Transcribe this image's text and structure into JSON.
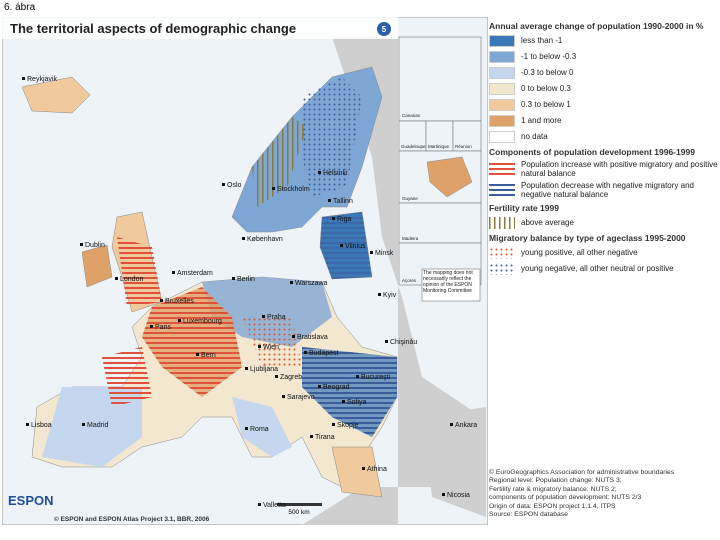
{
  "caption": "6. ábra",
  "title": "The territorial aspects of demographic change",
  "map_number": "5",
  "cities": [
    "Reykjavik",
    "Oslo",
    "Stockholm",
    "Helsinki",
    "Tallinn",
    "Riga",
    "København",
    "Vilnius",
    "Minsk",
    "Dublin",
    "London",
    "Amsterdam",
    "Berlin",
    "Warszawa",
    "Bruxelles",
    "Luxembourg",
    "Praha",
    "Kyiv",
    "Paris",
    "Wien",
    "Bratislava",
    "Budapest",
    "Chişinău",
    "Bern",
    "Ljubljana",
    "Zagreb",
    "Bucureşti",
    "Sarajevo",
    "Beograd",
    "Sofiya",
    "Roma",
    "Lisboa",
    "Madrid",
    "Tirana",
    "Skopje",
    "Ankara",
    "Athina",
    "Valletta",
    "Nicosia"
  ],
  "insets": [
    "Canarias",
    "Guadeloupe",
    "Martinique",
    "Réunion",
    "Guyane",
    "Madeira",
    "Açores"
  ],
  "disclaimer": "The mapping does not necessarily reflect the opinion of the ESPON Monitoring Committee",
  "scale": "500 km",
  "logo": "ESPON",
  "credit": "© ESPON and ESPON Atlas Project 3.1, BBR, 2006",
  "legend": {
    "population_change": {
      "title": "Annual average change of population 1990-2000 in %",
      "items": [
        {
          "label": "less than -1",
          "color": "#3a78b8"
        },
        {
          "label": "-1 to below -0.3",
          "color": "#7fa7d6"
        },
        {
          "label": "-0.3 to below 0",
          "color": "#c4d7ee"
        },
        {
          "label": "0 to below 0.3",
          "color": "#f3e7d0"
        },
        {
          "label": "0.3 to below 1",
          "color": "#f0ca9c"
        },
        {
          "label": "1 and more",
          "color": "#dea268"
        },
        {
          "label": "no data",
          "color": "#ffffff"
        }
      ]
    },
    "components": {
      "title": "Components of population development 1996-1999",
      "items": [
        {
          "label": "Population increase with positive migratory and positive natural balance",
          "color": "#e0503a"
        },
        {
          "label": "Population decrease with negative migratory and negative natural balance",
          "color": "#3b5b9a"
        }
      ]
    },
    "fertility": {
      "title": "Fertility rate 1999",
      "items": [
        {
          "label": "above average",
          "color": "#8a7a3a"
        }
      ]
    },
    "migratory": {
      "title": "Migratory balance by type of ageclass 1995-2000",
      "items": [
        {
          "label": "young positive, all other negative",
          "color": "#d9532f"
        },
        {
          "label": "young negative, all other neutral or positive",
          "color": "#3b5b9a"
        }
      ]
    }
  },
  "source_notes": [
    "© EuroGeographics Association for administrative boundaries",
    "Regional level: Population change: NUTS 3;",
    "Fertility rate & migratory balance: NUTS 2;",
    "components of population development: NUTS 2/3",
    "Origin of data: ESPON project 1.1.4, ITPS",
    "Source: ESPON database"
  ]
}
